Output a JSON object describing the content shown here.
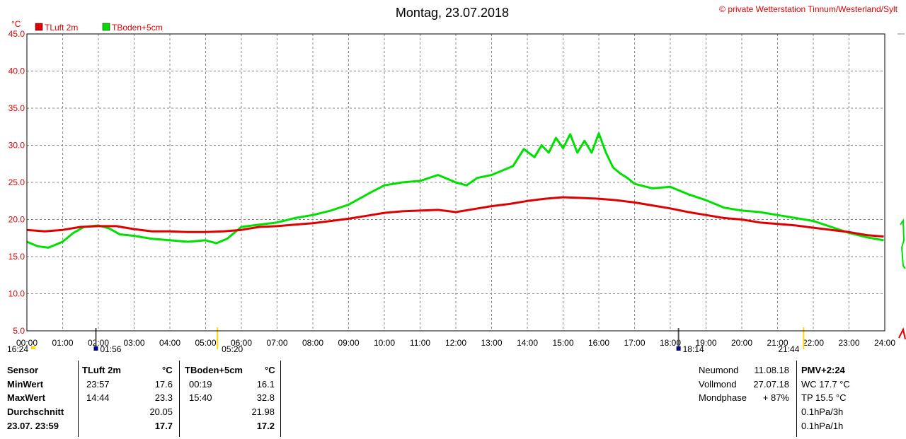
{
  "title": "Montag, 23.07.2018",
  "copyright": "© private Wetterstation Tinnum/Westerland/Sylt",
  "chart_data": {
    "type": "line",
    "ylabel": "°C",
    "ylim": [
      5,
      45
    ],
    "yticks": [
      "45.0",
      "40.0",
      "35.0",
      "30.0",
      "25.0",
      "20.0",
      "15.0",
      "10.0",
      "5.0"
    ],
    "xlim": [
      0,
      24
    ],
    "xticks": [
      "00:00",
      "01:00",
      "02:00",
      "03:00",
      "04:00",
      "05:00",
      "06:00",
      "07:00",
      "08:00",
      "09:00",
      "10:00",
      "11:00",
      "12:00",
      "13:00",
      "14:00",
      "15:00",
      "16:00",
      "17:00",
      "18:00",
      "19:00",
      "20:00",
      "21:00",
      "22:00",
      "23:00",
      "24:00"
    ],
    "grid": true,
    "legend_position": "top-left",
    "series": [
      {
        "name": "TLuft 2m",
        "color": "#e00000",
        "x": [
          0,
          0.5,
          1,
          1.5,
          2,
          2.5,
          3,
          3.5,
          4,
          4.5,
          5,
          5.5,
          6,
          6.5,
          7,
          7.5,
          8,
          8.5,
          9,
          9.5,
          10,
          10.5,
          11,
          11.5,
          12,
          12.5,
          13,
          13.5,
          14,
          14.5,
          15,
          15.5,
          16,
          16.5,
          17,
          17.5,
          18,
          18.5,
          19,
          19.5,
          20,
          20.5,
          21,
          21.5,
          22,
          22.5,
          23,
          23.5,
          23.97
        ],
        "y": [
          18.6,
          18.4,
          18.6,
          19.0,
          19.1,
          19.1,
          18.7,
          18.4,
          18.4,
          18.3,
          18.3,
          18.4,
          18.6,
          19.0,
          19.1,
          19.3,
          19.5,
          19.8,
          20.1,
          20.5,
          20.9,
          21.1,
          21.2,
          21.3,
          21.0,
          21.4,
          21.8,
          22.1,
          22.5,
          22.8,
          23.0,
          22.9,
          22.8,
          22.6,
          22.3,
          21.9,
          21.5,
          21.0,
          20.6,
          20.2,
          20.0,
          19.6,
          19.4,
          19.2,
          18.9,
          18.6,
          18.3,
          17.9,
          17.7
        ]
      },
      {
        "name": "TBoden+5cm",
        "color": "#00e000",
        "x": [
          0,
          0.3,
          0.6,
          1,
          1.3,
          1.6,
          2,
          2.3,
          2.6,
          3,
          3.5,
          4,
          4.5,
          5,
          5.3,
          5.6,
          6,
          6.5,
          7,
          7.5,
          8,
          8.5,
          9,
          9.3,
          9.6,
          10,
          10.5,
          11,
          11.5,
          12,
          12.3,
          12.6,
          13,
          13.3,
          13.6,
          13.9,
          14.2,
          14.4,
          14.6,
          14.8,
          15,
          15.2,
          15.4,
          15.6,
          15.8,
          16,
          16.2,
          16.4,
          16.6,
          16.8,
          17,
          17.5,
          18,
          18.5,
          19,
          19.5,
          20,
          20.5,
          21,
          21.5,
          22,
          22.5,
          23,
          23.5,
          23.97
        ],
        "y": [
          17.0,
          16.4,
          16.2,
          17.0,
          18.2,
          19.0,
          19.2,
          18.8,
          18.0,
          17.8,
          17.4,
          17.2,
          17.0,
          17.2,
          16.8,
          17.4,
          19.0,
          19.3,
          19.6,
          20.2,
          20.6,
          21.2,
          22.0,
          22.8,
          23.6,
          24.6,
          25.0,
          25.2,
          26.0,
          25.0,
          24.6,
          25.6,
          26.0,
          26.6,
          27.2,
          29.5,
          28.4,
          30.0,
          29.0,
          31.0,
          29.6,
          31.5,
          29.0,
          30.6,
          29.0,
          31.6,
          29.0,
          27.0,
          26.2,
          25.6,
          24.8,
          24.2,
          24.4,
          23.4,
          22.6,
          21.6,
          21.2,
          21.0,
          20.6,
          20.2,
          19.8,
          19.0,
          18.2,
          17.6,
          17.2
        ]
      }
    ],
    "markers": [
      {
        "time_label": "16:24",
        "x": 0.0
      },
      {
        "time_label": "01:56",
        "x": 1.93
      },
      {
        "time_label": "05:20",
        "x": 5.33
      },
      {
        "time_label": "18:14",
        "x": 18.23
      },
      {
        "time_label": "21:44",
        "x": 21.73
      }
    ]
  },
  "table": {
    "col_sensor_header": "Sensor",
    "col_tluft_header": "TLuft 2m",
    "col_tluft_unit": "°C",
    "col_tboden_header": "TBoden+5cm",
    "col_tboden_unit": "°C",
    "rows": [
      {
        "label": "MinWert",
        "t1_time": "23:57",
        "t1_val": "17.6",
        "t2_time": "00:19",
        "t2_val": "16.1"
      },
      {
        "label": "MaxWert",
        "t1_time": "14:44",
        "t1_val": "23.3",
        "t2_time": "15:40",
        "t2_val": "32.8"
      },
      {
        "label": "Durchschnitt",
        "t1_time": "",
        "t1_val": "20.05",
        "t2_time": "",
        "t2_val": "21.98"
      },
      {
        "label": "23.07. 23:59",
        "t1_time": "",
        "t1_val": "17.7",
        "t2_time": "",
        "t2_val": "17.2"
      }
    ]
  },
  "moon": {
    "rows": [
      {
        "label": "Neumond",
        "value": "11.08.18"
      },
      {
        "label": "Vollmond",
        "value": "27.07.18"
      },
      {
        "label": "Mondphase",
        "value": "+ 87%"
      }
    ]
  },
  "side": {
    "pmv": "PMV+2:24",
    "wc": "WC 17.7 °C",
    "tp": "TP 15.5 °C",
    "p3h": "0.1hPa/3h",
    "p1h": "0.1hPa/1h"
  }
}
